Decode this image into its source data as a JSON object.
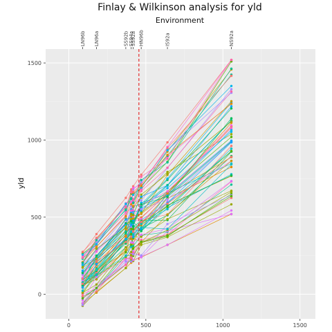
{
  "chart_data": {
    "type": "line",
    "title": "Finlay & Wilkinson analysis for yld",
    "x2label": "Environment",
    "ylabel": "yld",
    "xlim": [
      -150,
      1600
    ],
    "ylim": [
      -160,
      1590
    ],
    "xticks": [
      0,
      500,
      1000,
      1500
    ],
    "yticks": [
      0,
      500,
      1000,
      1500
    ],
    "environments": [
      {
        "name": "LN96b",
        "x": 90
      },
      {
        "name": "LN96a",
        "x": 180
      },
      {
        "name": "SS92b",
        "x": 370
      },
      {
        "name": "SS94a",
        "x": 405
      },
      {
        "name": "SS92a",
        "x": 418
      },
      {
        "name": "HN96b",
        "x": 470
      },
      {
        "name": "IS92a",
        "x": 640
      },
      {
        "name": "NS92a",
        "x": 1055
      }
    ],
    "vline": {
      "x": 455,
      "color": "#e41a1c",
      "style": "dashed"
    },
    "genotypes": 64,
    "series_summary": {
      "env_min": [
        -75,
        10,
        170,
        205,
        215,
        240,
        320,
        520
      ],
      "env_max": [
        275,
        390,
        625,
        690,
        700,
        780,
        985,
        1520
      ],
      "lowest_line": [
        -60,
        10,
        170,
        205,
        220,
        240,
        320,
        520
      ],
      "highest_line": [
        270,
        390,
        625,
        680,
        700,
        775,
        985,
        1520
      ]
    },
    "colors": [
      "#f8766d",
      "#e38900",
      "#c49a00",
      "#99a800",
      "#53b400",
      "#00bc56",
      "#00c094",
      "#00bfc4",
      "#00b6eb",
      "#06a4ff",
      "#a58aff",
      "#df70f8",
      "#fb61d7",
      "#ff66a8"
    ]
  }
}
